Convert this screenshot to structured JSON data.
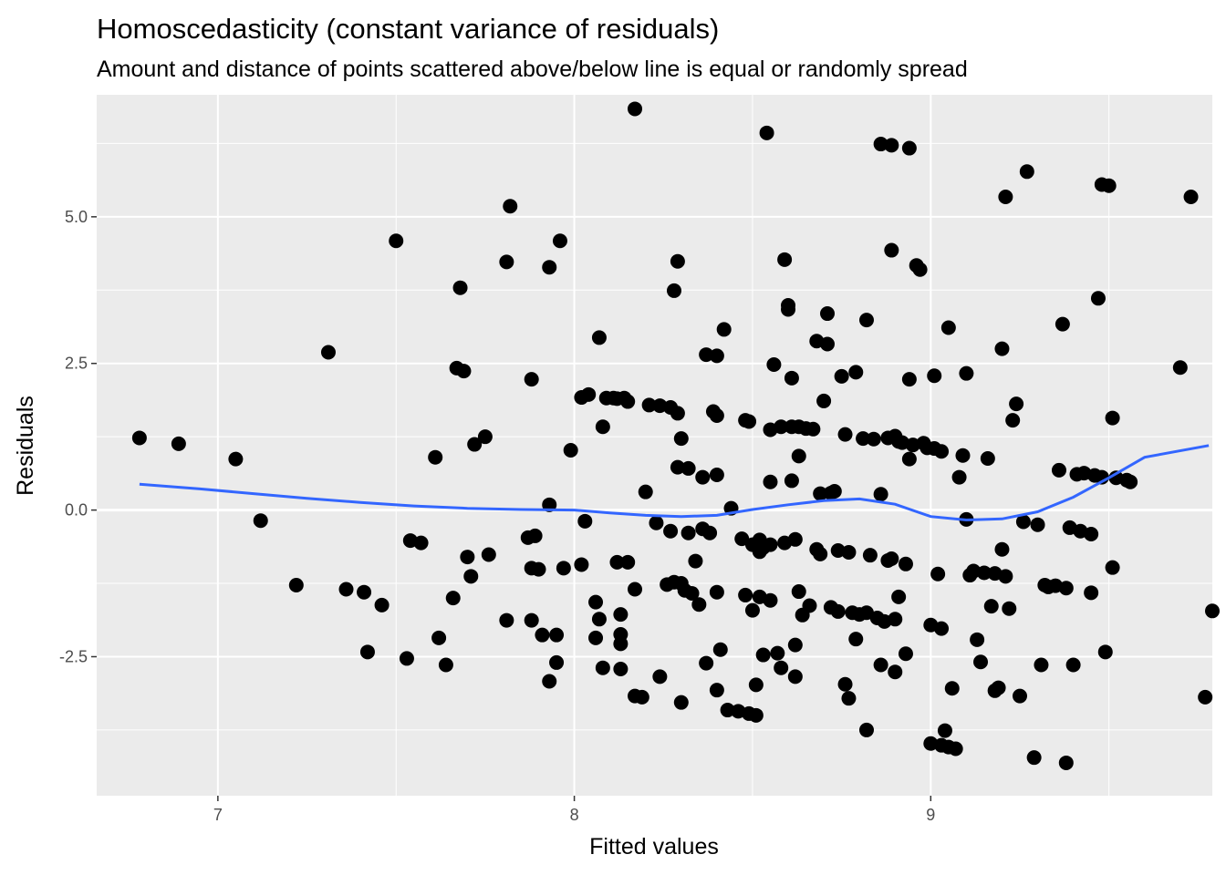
{
  "chart_data": {
    "type": "scatter",
    "title": "Homoscedasticity (constant variance of residuals)",
    "subtitle": "Amount and distance of points scattered above/below line is equal or randomly spread",
    "xlabel": "Fitted values",
    "ylabel": "Residuals",
    "xlim": [
      6.66,
      9.79
    ],
    "ylim": [
      -4.87,
      7.08
    ],
    "x_ticks": [
      7,
      8,
      9
    ],
    "x_tick_labels": [
      "7",
      "8",
      "9"
    ],
    "y_ticks": [
      -2.5,
      0,
      2.5,
      5
    ],
    "y_tick_labels": [
      "-2.5",
      "0.0",
      "2.5",
      "5.0"
    ],
    "grid": true,
    "legend": "none",
    "hline": 0,
    "colors": {
      "panel": "#ebebeb",
      "grid": "#ffffff",
      "points": "#000000",
      "smooth": "#3366ff"
    },
    "points": [
      [
        6.78,
        1.23
      ],
      [
        6.89,
        1.13
      ],
      [
        7.05,
        0.87
      ],
      [
        7.12,
        -0.18
      ],
      [
        7.22,
        -1.28
      ],
      [
        7.31,
        2.69
      ],
      [
        7.36,
        -1.35
      ],
      [
        7.41,
        -1.4
      ],
      [
        7.42,
        -2.42
      ],
      [
        7.46,
        -1.62
      ],
      [
        7.5,
        4.59
      ],
      [
        7.53,
        -2.53
      ],
      [
        7.54,
        -0.52
      ],
      [
        7.57,
        -0.56
      ],
      [
        7.61,
        0.9
      ],
      [
        7.62,
        -2.18
      ],
      [
        7.64,
        -2.64
      ],
      [
        7.66,
        -1.5
      ],
      [
        7.67,
        2.42
      ],
      [
        7.68,
        3.79
      ],
      [
        7.69,
        2.37
      ],
      [
        7.7,
        -0.8
      ],
      [
        7.71,
        -1.13
      ],
      [
        7.72,
        1.12
      ],
      [
        7.75,
        1.25
      ],
      [
        7.76,
        -0.76
      ],
      [
        7.81,
        -1.88
      ],
      [
        7.81,
        4.23
      ],
      [
        7.82,
        5.18
      ],
      [
        7.87,
        -0.47
      ],
      [
        7.88,
        -0.99
      ],
      [
        7.88,
        -1.88
      ],
      [
        7.88,
        2.23
      ],
      [
        7.89,
        -0.44
      ],
      [
        7.9,
        -1.01
      ],
      [
        7.91,
        -2.13
      ],
      [
        7.93,
        4.14
      ],
      [
        7.93,
        0.09
      ],
      [
        7.93,
        -2.92
      ],
      [
        7.95,
        -2.13
      ],
      [
        7.95,
        -2.6
      ],
      [
        7.96,
        4.59
      ],
      [
        7.97,
        -0.99
      ],
      [
        7.99,
        1.02
      ],
      [
        8.02,
        1.92
      ],
      [
        8.02,
        -0.93
      ],
      [
        8.03,
        -0.19
      ],
      [
        8.04,
        1.97
      ],
      [
        8.06,
        -1.57
      ],
      [
        8.06,
        -2.18
      ],
      [
        8.07,
        -1.86
      ],
      [
        8.07,
        2.94
      ],
      [
        8.08,
        1.42
      ],
      [
        8.08,
        -2.69
      ],
      [
        8.09,
        1.91
      ],
      [
        8.11,
        1.91
      ],
      [
        8.12,
        1.9
      ],
      [
        8.12,
        -0.89
      ],
      [
        8.13,
        -2.71
      ],
      [
        8.13,
        -2.12
      ],
      [
        8.13,
        -2.28
      ],
      [
        8.13,
        -1.78
      ],
      [
        8.14,
        1.91
      ],
      [
        8.15,
        -0.89
      ],
      [
        8.15,
        1.85
      ],
      [
        8.17,
        6.84
      ],
      [
        8.17,
        -1.35
      ],
      [
        8.17,
        -3.17
      ],
      [
        8.19,
        -3.19
      ],
      [
        8.2,
        0.31
      ],
      [
        8.21,
        1.79
      ],
      [
        8.23,
        -0.22
      ],
      [
        8.24,
        -2.84
      ],
      [
        8.24,
        1.78
      ],
      [
        8.26,
        -1.27
      ],
      [
        8.27,
        -0.36
      ],
      [
        8.27,
        1.75
      ],
      [
        8.28,
        -1.23
      ],
      [
        8.28,
        3.74
      ],
      [
        8.29,
        1.65
      ],
      [
        8.29,
        4.24
      ],
      [
        8.29,
        0.73
      ],
      [
        8.3,
        1.22
      ],
      [
        8.3,
        -1.25
      ],
      [
        8.3,
        -3.28
      ],
      [
        8.31,
        -1.37
      ],
      [
        8.32,
        0.71
      ],
      [
        8.32,
        -0.39
      ],
      [
        8.33,
        -1.42
      ],
      [
        8.34,
        -0.87
      ],
      [
        8.35,
        -1.61
      ],
      [
        8.36,
        -0.32
      ],
      [
        8.36,
        0.56
      ],
      [
        8.37,
        -2.61
      ],
      [
        8.37,
        2.65
      ],
      [
        8.38,
        -0.39
      ],
      [
        8.39,
        1.68
      ],
      [
        8.4,
        2.63
      ],
      [
        8.4,
        1.61
      ],
      [
        8.4,
        0.6
      ],
      [
        8.4,
        -3.07
      ],
      [
        8.4,
        -1.4
      ],
      [
        8.41,
        -2.38
      ],
      [
        8.42,
        3.08
      ],
      [
        8.43,
        -3.41
      ],
      [
        8.44,
        0.03
      ],
      [
        8.46,
        -3.43
      ],
      [
        8.47,
        -0.49
      ],
      [
        8.48,
        1.53
      ],
      [
        8.48,
        -1.45
      ],
      [
        8.49,
        1.51
      ],
      [
        8.49,
        -3.47
      ],
      [
        8.5,
        -1.71
      ],
      [
        8.5,
        -0.59
      ],
      [
        8.51,
        -2.98
      ],
      [
        8.51,
        -3.5
      ],
      [
        8.52,
        -0.51
      ],
      [
        8.52,
        -0.71
      ],
      [
        8.52,
        -1.48
      ],
      [
        8.53,
        -0.64
      ],
      [
        8.53,
        -2.47
      ],
      [
        8.54,
        6.43
      ],
      [
        8.55,
        -1.54
      ],
      [
        8.55,
        0.48
      ],
      [
        8.55,
        -0.59
      ],
      [
        8.55,
        1.37
      ],
      [
        8.56,
        2.48
      ],
      [
        8.57,
        -2.44
      ],
      [
        8.58,
        1.42
      ],
      [
        8.58,
        -2.69
      ],
      [
        8.59,
        4.27
      ],
      [
        8.59,
        -0.56
      ],
      [
        8.6,
        3.49
      ],
      [
        8.6,
        3.42
      ],
      [
        8.61,
        1.42
      ],
      [
        8.61,
        0.5
      ],
      [
        8.61,
        2.25
      ],
      [
        8.62,
        -0.5
      ],
      [
        8.62,
        -2.3
      ],
      [
        8.62,
        -2.84
      ],
      [
        8.63,
        1.42
      ],
      [
        8.63,
        -1.39
      ],
      [
        8.63,
        0.92
      ],
      [
        8.64,
        -1.79
      ],
      [
        8.65,
        1.39
      ],
      [
        8.66,
        -1.63
      ],
      [
        8.67,
        1.38
      ],
      [
        8.68,
        2.88
      ],
      [
        8.68,
        -0.67
      ],
      [
        8.69,
        -0.75
      ],
      [
        8.69,
        0.28
      ],
      [
        8.7,
        1.86
      ],
      [
        8.71,
        3.35
      ],
      [
        8.71,
        2.83
      ],
      [
        8.72,
        0.29
      ],
      [
        8.72,
        -1.66
      ],
      [
        8.73,
        0.32
      ],
      [
        8.74,
        -0.69
      ],
      [
        8.74,
        -1.73
      ],
      [
        8.75,
        2.28
      ],
      [
        8.76,
        1.29
      ],
      [
        8.76,
        -2.97
      ],
      [
        8.77,
        -0.72
      ],
      [
        8.77,
        -3.21
      ],
      [
        8.78,
        -1.75
      ],
      [
        8.79,
        -2.2
      ],
      [
        8.79,
        2.35
      ],
      [
        8.8,
        -1.78
      ],
      [
        8.81,
        1.22
      ],
      [
        8.82,
        3.24
      ],
      [
        8.82,
        -3.75
      ],
      [
        8.82,
        -1.75
      ],
      [
        8.83,
        -0.77
      ],
      [
        8.84,
        1.21
      ],
      [
        8.85,
        -1.84
      ],
      [
        8.86,
        -2.64
      ],
      [
        8.86,
        6.24
      ],
      [
        8.86,
        0.27
      ],
      [
        8.87,
        -1.9
      ],
      [
        8.88,
        1.23
      ],
      [
        8.88,
        -0.86
      ],
      [
        8.89,
        -0.83
      ],
      [
        8.89,
        6.22
      ],
      [
        8.89,
        4.43
      ],
      [
        8.9,
        -2.76
      ],
      [
        8.9,
        -1.86
      ],
      [
        8.9,
        1.26
      ],
      [
        8.91,
        1.17
      ],
      [
        8.91,
        -1.48
      ],
      [
        8.92,
        1.15
      ],
      [
        8.93,
        -0.92
      ],
      [
        8.93,
        -2.45
      ],
      [
        8.94,
        6.17
      ],
      [
        8.94,
        2.23
      ],
      [
        8.94,
        0.87
      ],
      [
        8.95,
        1.11
      ],
      [
        8.96,
        4.17
      ],
      [
        8.97,
        4.1
      ],
      [
        8.98,
        1.14
      ],
      [
        8.99,
        1.06
      ],
      [
        9.0,
        -1.96
      ],
      [
        9.0,
        -3.98
      ],
      [
        9.01,
        1.05
      ],
      [
        9.01,
        2.29
      ],
      [
        9.02,
        -1.09
      ],
      [
        9.03,
        -4.01
      ],
      [
        9.03,
        1.0
      ],
      [
        9.03,
        -2.02
      ],
      [
        9.04,
        -3.76
      ],
      [
        9.05,
        -4.04
      ],
      [
        9.05,
        3.11
      ],
      [
        9.06,
        -3.04
      ],
      [
        9.07,
        -4.07
      ],
      [
        9.08,
        0.56
      ],
      [
        9.09,
        0.93
      ],
      [
        9.1,
        2.33
      ],
      [
        9.1,
        -0.16
      ],
      [
        9.11,
        -1.11
      ],
      [
        9.12,
        -1.04
      ],
      [
        9.13,
        -2.21
      ],
      [
        9.14,
        -2.59
      ],
      [
        9.15,
        -1.07
      ],
      [
        9.16,
        0.88
      ],
      [
        9.17,
        -1.64
      ],
      [
        9.18,
        -1.08
      ],
      [
        9.18,
        -3.08
      ],
      [
        9.19,
        -3.03
      ],
      [
        9.2,
        2.75
      ],
      [
        9.2,
        -0.67
      ],
      [
        9.21,
        -1.13
      ],
      [
        9.21,
        5.34
      ],
      [
        9.22,
        -1.68
      ],
      [
        9.23,
        1.53
      ],
      [
        9.24,
        1.81
      ],
      [
        9.25,
        -3.17
      ],
      [
        9.26,
        -0.2
      ],
      [
        9.27,
        5.77
      ],
      [
        9.29,
        -4.22
      ],
      [
        9.3,
        -0.25
      ],
      [
        9.31,
        -2.64
      ],
      [
        9.32,
        -1.28
      ],
      [
        9.33,
        -1.31
      ],
      [
        9.35,
        -1.29
      ],
      [
        9.36,
        0.68
      ],
      [
        9.37,
        3.17
      ],
      [
        9.38,
        -1.33
      ],
      [
        9.38,
        -4.31
      ],
      [
        9.39,
        -0.3
      ],
      [
        9.4,
        -2.64
      ],
      [
        9.41,
        0.61
      ],
      [
        9.42,
        -0.36
      ],
      [
        9.43,
        0.63
      ],
      [
        9.45,
        -0.41
      ],
      [
        9.45,
        -1.41
      ],
      [
        9.46,
        0.59
      ],
      [
        9.47,
        3.61
      ],
      [
        9.48,
        0.56
      ],
      [
        9.48,
        5.55
      ],
      [
        9.49,
        -2.42
      ],
      [
        9.5,
        5.53
      ],
      [
        9.51,
        1.57
      ],
      [
        9.51,
        -0.98
      ],
      [
        9.52,
        0.55
      ],
      [
        9.55,
        0.51
      ],
      [
        9.56,
        0.48
      ],
      [
        9.7,
        2.43
      ],
      [
        9.73,
        5.34
      ],
      [
        9.77,
        -3.19
      ],
      [
        9.79,
        -1.72
      ]
    ],
    "smooth_line": [
      [
        6.78,
        0.44
      ],
      [
        6.95,
        0.36
      ],
      [
        7.1,
        0.28
      ],
      [
        7.25,
        0.2
      ],
      [
        7.4,
        0.13
      ],
      [
        7.55,
        0.07
      ],
      [
        7.7,
        0.03
      ],
      [
        7.85,
        0.01
      ],
      [
        8.0,
        0.0
      ],
      [
        8.1,
        -0.05
      ],
      [
        8.2,
        -0.09
      ],
      [
        8.3,
        -0.11
      ],
      [
        8.4,
        -0.09
      ],
      [
        8.5,
        0.01
      ],
      [
        8.6,
        0.09
      ],
      [
        8.7,
        0.16
      ],
      [
        8.8,
        0.19
      ],
      [
        8.9,
        0.1
      ],
      [
        9.0,
        -0.11
      ],
      [
        9.1,
        -0.17
      ],
      [
        9.2,
        -0.15
      ],
      [
        9.3,
        -0.03
      ],
      [
        9.4,
        0.22
      ],
      [
        9.5,
        0.55
      ],
      [
        9.6,
        0.9
      ],
      [
        9.78,
        1.1
      ]
    ]
  }
}
